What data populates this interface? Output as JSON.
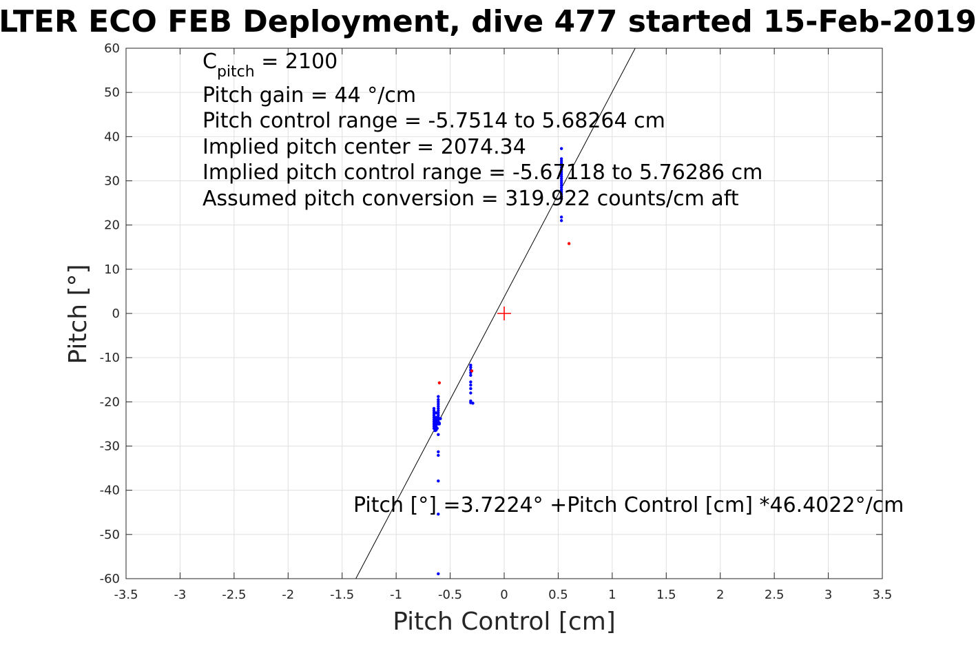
{
  "chart_data": {
    "type": "scatter",
    "title": "LTER ECO FEB Deployment, dive 477 started 15-Feb-2019",
    "xlabel": "Pitch Control [cm]",
    "ylabel": "Pitch [°]",
    "xlim": [
      -3.5,
      3.5
    ],
    "ylim": [
      -60,
      60
    ],
    "xticks": [
      -3.5,
      -3,
      -2.5,
      -2,
      -1.5,
      -1,
      -0.5,
      0,
      0.5,
      1,
      1.5,
      2,
      2.5,
      3,
      3.5
    ],
    "xtick_labels": [
      "-3.5",
      "-3",
      "-2.5",
      "-2",
      "-1.5",
      "-1",
      "-0.5",
      "0",
      "0.5",
      "1",
      "1.5",
      "2",
      "2.5",
      "3",
      "3.5"
    ],
    "yticks": [
      -60,
      -50,
      -40,
      -30,
      -20,
      -10,
      0,
      10,
      20,
      30,
      40,
      50,
      60
    ],
    "ytick_labels": [
      "-60",
      "-50",
      "-40",
      "-30",
      "-20",
      "-10",
      "0",
      "10",
      "20",
      "30",
      "40",
      "50",
      "60"
    ],
    "grid": true,
    "fit_line": {
      "intercept": 3.7224,
      "slope": 46.4022,
      "color": "#000000"
    },
    "center_marker": {
      "x": 0,
      "y": 0,
      "color": "#ff0000",
      "shape": "plus"
    },
    "series": [
      {
        "color": "#0000ff",
        "points": [
          [
            0.53,
            37.3
          ],
          [
            0.53,
            35.0
          ],
          [
            0.53,
            34.5
          ],
          [
            0.53,
            34.0
          ],
          [
            0.53,
            33.5
          ],
          [
            0.53,
            33.0
          ],
          [
            0.53,
            32.5
          ],
          [
            0.53,
            32.0
          ],
          [
            0.53,
            31.5
          ],
          [
            0.53,
            31.0
          ],
          [
            0.53,
            30.5
          ],
          [
            0.53,
            30.0
          ],
          [
            0.53,
            29.5
          ],
          [
            0.53,
            29.0
          ],
          [
            0.53,
            28.5
          ],
          [
            0.53,
            28.0
          ],
          [
            0.53,
            27.5
          ],
          [
            0.53,
            27.0
          ],
          [
            0.53,
            26.5
          ],
          [
            0.53,
            26.0
          ],
          [
            0.53,
            21.8
          ],
          [
            0.53,
            21.0
          ],
          [
            -0.31,
            -11.7
          ],
          [
            -0.31,
            -12.2
          ],
          [
            -0.31,
            -12.8
          ],
          [
            -0.31,
            -13.4
          ],
          [
            -0.31,
            -14.0
          ],
          [
            -0.31,
            -15.5
          ],
          [
            -0.31,
            -16.2
          ],
          [
            -0.31,
            -17.0
          ],
          [
            -0.31,
            -18.0
          ],
          [
            -0.31,
            -19.8
          ],
          [
            -0.31,
            -20.2
          ],
          [
            -0.29,
            -20.3
          ],
          [
            -0.61,
            -18.8
          ],
          [
            -0.61,
            -19.5
          ],
          [
            -0.61,
            -20.0
          ],
          [
            -0.61,
            -20.5
          ],
          [
            -0.61,
            -21.0
          ],
          [
            -0.61,
            -21.5
          ],
          [
            -0.61,
            -22.0
          ],
          [
            -0.61,
            -22.5
          ],
          [
            -0.61,
            -23.0
          ],
          [
            -0.61,
            -23.5
          ],
          [
            -0.61,
            -24.0
          ],
          [
            -0.61,
            -24.5
          ],
          [
            -0.61,
            -25.0
          ],
          [
            -0.61,
            -27.4
          ],
          [
            -0.61,
            -31.3
          ],
          [
            -0.61,
            -32.1
          ],
          [
            -0.61,
            -37.9
          ],
          [
            -0.61,
            -45.4
          ],
          [
            -0.61,
            -58.9
          ],
          [
            -0.63,
            -22.5
          ],
          [
            -0.63,
            -23.5
          ],
          [
            -0.63,
            -24.0
          ],
          [
            -0.63,
            -24.5
          ],
          [
            -0.63,
            -25.0
          ],
          [
            -0.63,
            -25.5
          ],
          [
            -0.63,
            -26.0
          ],
          [
            -0.63,
            -26.4
          ],
          [
            -0.65,
            -21.5
          ],
          [
            -0.65,
            -22.0
          ],
          [
            -0.65,
            -22.5
          ],
          [
            -0.65,
            -23.0
          ],
          [
            -0.65,
            -23.5
          ],
          [
            -0.65,
            -24.0
          ],
          [
            -0.65,
            -24.5
          ],
          [
            -0.65,
            -25.0
          ],
          [
            -0.65,
            -25.5
          ],
          [
            -0.65,
            -26.0
          ],
          [
            -0.64,
            -26.5
          ],
          [
            -0.62,
            -26.0
          ],
          [
            -0.6,
            -25.0
          ],
          [
            -0.59,
            -23.8
          ],
          [
            -0.6,
            -24.8
          ]
        ]
      },
      {
        "color": "#ff0000",
        "points": [
          [
            0.6,
            15.8
          ],
          [
            -0.6,
            -15.7
          ],
          [
            -0.3,
            -13.0
          ]
        ]
      }
    ],
    "annotations": {
      "c_label": "C",
      "c_sub": "pitch",
      "c_value": " = 2100",
      "lines": [
        "Pitch gain = 44 °/cm",
        "Pitch control range = -5.7514 to 5.68264 cm",
        "Implied pitch center = 2074.34",
        "Implied pitch control range = -5.67118 to 5.76286 cm",
        "Assumed pitch conversion = 319.922 counts/cm aft"
      ],
      "fit_equation": "Pitch [°] =3.7224° +Pitch Control [cm] *46.4022°/cm"
    }
  }
}
